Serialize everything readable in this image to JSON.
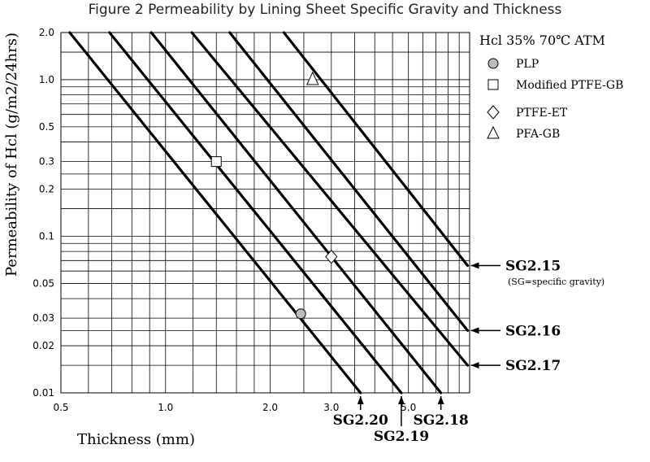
{
  "title": "Figure 2 Permeability by Lining Sheet Specific Gravity and Thickness",
  "condition": "Hcl  35%  70℃  ATM",
  "note": "(SG=specific gravity)",
  "chart_data": {
    "type": "line",
    "title": "Figure 2 Permeability by Lining Sheet Specific Gravity and Thickness",
    "xlabel": "Thickness (mm)",
    "ylabel": "Permeability  of  Hcl (g/m2/24hrs)",
    "xscale": "log",
    "yscale": "log",
    "xlim": [
      0.5,
      7.5
    ],
    "ylim": [
      0.01,
      2.0
    ],
    "grid": true,
    "legend": "top-right",
    "x_ticks": [
      {
        "v": 0.5,
        "label": "0.5"
      },
      {
        "v": 1.0,
        "label": "1.0"
      },
      {
        "v": 2.0,
        "label": "2.0"
      },
      {
        "v": 3.0,
        "label": "3.0"
      },
      {
        "v": 5.0,
        "label": "5.0"
      }
    ],
    "y_ticks": [
      {
        "v": 2.0,
        "label": "2.0"
      },
      {
        "v": 1.0,
        "label": "1.0"
      },
      {
        "v": 0.5,
        "label": "0.5"
      },
      {
        "v": 0.3,
        "label": "0.3"
      },
      {
        "v": 0.2,
        "label": "0.2"
      },
      {
        "v": 0.1,
        "label": "0.1"
      },
      {
        "v": 0.05,
        "label": "0.05"
      },
      {
        "v": 0.03,
        "label": "0.03"
      },
      {
        "v": 0.02,
        "label": "0.02"
      },
      {
        "v": 0.01,
        "label": "0.01"
      }
    ],
    "x_grid": [
      0.6,
      0.7,
      0.8,
      0.9,
      1.0,
      1.2,
      1.4,
      1.6,
      1.8,
      2.0,
      2.5,
      3.0,
      3.5,
      4.0,
      4.5,
      5.0,
      5.5,
      6.0,
      6.5,
      7.0,
      7.5
    ],
    "y_grid": [
      0.01,
      0.015,
      0.02,
      0.025,
      0.03,
      0.04,
      0.05,
      0.06,
      0.07,
      0.08,
      0.09,
      0.1,
      0.15,
      0.2,
      0.25,
      0.3,
      0.4,
      0.5,
      0.6,
      0.7,
      0.8,
      0.9,
      1.0,
      1.5,
      2.0
    ],
    "series": [
      {
        "name": "SG2.20",
        "x": [
          0.53,
          3.64
        ],
        "y": [
          2.0,
          0.01
        ]
      },
      {
        "name": "SG2.19",
        "x": [
          0.69,
          4.77
        ],
        "y": [
          2.0,
          0.01
        ]
      },
      {
        "name": "SG2.18",
        "x": [
          0.91,
          6.2
        ],
        "y": [
          2.0,
          0.01
        ]
      },
      {
        "name": "SG2.17",
        "x": [
          1.19,
          7.4
        ],
        "y": [
          2.0,
          0.015
        ]
      },
      {
        "name": "SG2.16",
        "x": [
          1.53,
          7.4
        ],
        "y": [
          2.0,
          0.025
        ]
      },
      {
        "name": "SG2.15",
        "x": [
          2.19,
          7.4
        ],
        "y": [
          2.0,
          0.065
        ]
      }
    ],
    "points": [
      {
        "name": "PLP",
        "marker": "circle",
        "x": 2.45,
        "y": 0.032
      },
      {
        "name": "Modified PTFE-GB",
        "marker": "square",
        "x": 1.4,
        "y": 0.3
      },
      {
        "name": "PTFE-ET",
        "marker": "diamond",
        "x": 3.0,
        "y": 0.074
      },
      {
        "name": "PFA-GB",
        "marker": "triangle",
        "x": 2.65,
        "y": 1.0
      }
    ],
    "right_labels": [
      {
        "series": "SG2.15",
        "text": "SG2.15"
      },
      {
        "series": "SG2.16",
        "text": "SG2.16"
      },
      {
        "series": "SG2.17",
        "text": "SG2.17"
      }
    ],
    "bottom_labels": [
      {
        "series": "SG2.20",
        "text": "SG2.20"
      },
      {
        "series": "SG2.19",
        "text": "SG2.19"
      },
      {
        "series": "SG2.18",
        "text": "SG2.18"
      }
    ]
  },
  "colors": {
    "line": "#000000",
    "grid": "#000000",
    "marker_fill": "#ffffff",
    "plp_fill": "#bbbbbb"
  }
}
